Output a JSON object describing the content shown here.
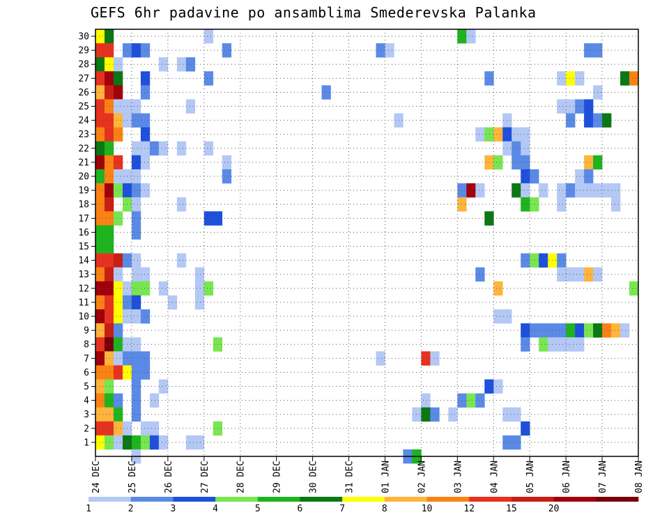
{
  "chart_data": {
    "type": "heatmap",
    "title": "GEFS 6hr padavine po ansamblima Smederevska Palanka",
    "xlabel": "",
    "ylabel": "",
    "x_tick_labels": [
      "24 DEC",
      "25 DEC",
      "26 DEC",
      "27 DEC",
      "28 DEC",
      "29 DEC",
      "30 DEC",
      "31 DEC",
      "01 JAN",
      "02 JAN",
      "03 JAN",
      "04 JAN",
      "05 JAN",
      "06 JAN",
      "07 JAN",
      "08 JAN"
    ],
    "y_tick_labels": [
      "1",
      "2",
      "3",
      "4",
      "5",
      "6",
      "7",
      "8",
      "9",
      "10",
      "11",
      "12",
      "13",
      "14",
      "15",
      "16",
      "17",
      "18",
      "19",
      "20",
      "21",
      "22",
      "23",
      "24",
      "25",
      "26",
      "27",
      "28",
      "29",
      "30"
    ],
    "time_step_hours": 6,
    "steps_per_day": 4,
    "grid": true,
    "colorbar": {
      "position": "bottom",
      "labels": [
        "1",
        "2",
        "3",
        "4",
        "5",
        "6",
        "7",
        "8",
        "10",
        "12",
        "15",
        "20"
      ],
      "colors": [
        "#b4c8f5",
        "#5a8ae6",
        "#1e50dc",
        "#78e650",
        "#1eb41e",
        "#0a7814",
        "#ffff00",
        "#ffb43c",
        "#fa8214",
        "#e6321e",
        "#c81e14",
        "#a0000a",
        "#78000a"
      ],
      "label_after_band": [
        0,
        1,
        2,
        3,
        4,
        5,
        6,
        7,
        8,
        9,
        10,
        11
      ]
    },
    "levels": [
      "#b4c8f5",
      "#5a8ae6",
      "#1e50dc",
      "#78e650",
      "#1eb41e",
      "#0a7814",
      "#ffff00",
      "#ffb43c",
      "#fa8214",
      "#e6321e",
      "#c81e14",
      "#a0000a",
      "#78000a"
    ],
    "cells": [
      [
        30,
        0,
        6
      ],
      [
        30,
        1,
        5
      ],
      [
        30,
        12,
        0
      ],
      [
        30,
        40,
        4
      ],
      [
        30,
        41,
        0
      ],
      [
        29,
        0,
        9
      ],
      [
        29,
        1,
        9
      ],
      [
        29,
        3,
        1
      ],
      [
        29,
        4,
        2
      ],
      [
        29,
        5,
        1
      ],
      [
        29,
        14,
        1
      ],
      [
        29,
        31,
        1
      ],
      [
        29,
        32,
        0
      ],
      [
        29,
        54,
        1
      ],
      [
        29,
        55,
        1
      ],
      [
        28,
        0,
        5
      ],
      [
        28,
        1,
        6
      ],
      [
        28,
        2,
        0
      ],
      [
        28,
        7,
        0
      ],
      [
        28,
        9,
        0
      ],
      [
        28,
        10,
        1
      ],
      [
        27,
        0,
        9
      ],
      [
        27,
        1,
        11
      ],
      [
        27,
        2,
        5
      ],
      [
        27,
        5,
        2
      ],
      [
        27,
        12,
        1
      ],
      [
        27,
        43,
        1
      ],
      [
        27,
        51,
        0
      ],
      [
        27,
        52,
        6
      ],
      [
        27,
        53,
        0
      ],
      [
        27,
        58,
        5
      ],
      [
        27,
        59,
        8
      ],
      [
        26,
        0,
        7
      ],
      [
        26,
        1,
        10
      ],
      [
        26,
        2,
        11
      ],
      [
        26,
        5,
        1
      ],
      [
        26,
        25,
        1
      ],
      [
        26,
        55,
        0
      ],
      [
        25,
        0,
        9
      ],
      [
        25,
        1,
        8
      ],
      [
        25,
        2,
        0
      ],
      [
        25,
        3,
        0
      ],
      [
        25,
        4,
        0
      ],
      [
        25,
        10,
        0
      ],
      [
        25,
        51,
        0
      ],
      [
        25,
        52,
        0
      ],
      [
        25,
        53,
        1
      ],
      [
        25,
        54,
        2
      ],
      [
        24,
        0,
        9
      ],
      [
        24,
        1,
        9
      ],
      [
        24,
        2,
        7
      ],
      [
        24,
        3,
        0
      ],
      [
        24,
        4,
        1
      ],
      [
        24,
        5,
        1
      ],
      [
        24,
        33,
        0
      ],
      [
        24,
        45,
        0
      ],
      [
        24,
        52,
        1
      ],
      [
        24,
        54,
        2
      ],
      [
        24,
        55,
        1
      ],
      [
        24,
        56,
        5
      ],
      [
        23,
        0,
        8
      ],
      [
        23,
        1,
        9
      ],
      [
        23,
        2,
        8
      ],
      [
        23,
        5,
        2
      ],
      [
        23,
        42,
        0
      ],
      [
        23,
        43,
        3
      ],
      [
        23,
        44,
        7
      ],
      [
        23,
        45,
        2
      ],
      [
        23,
        46,
        0
      ],
      [
        23,
        47,
        0
      ],
      [
        22,
        0,
        5
      ],
      [
        22,
        1,
        4
      ],
      [
        22,
        4,
        0
      ],
      [
        22,
        5,
        0
      ],
      [
        22,
        6,
        1
      ],
      [
        22,
        7,
        0
      ],
      [
        22,
        9,
        0
      ],
      [
        22,
        12,
        0
      ],
      [
        22,
        45,
        0
      ],
      [
        22,
        46,
        1
      ],
      [
        22,
        47,
        0
      ],
      [
        21,
        0,
        11
      ],
      [
        21,
        1,
        8
      ],
      [
        21,
        2,
        9
      ],
      [
        21,
        4,
        2
      ],
      [
        21,
        5,
        0
      ],
      [
        21,
        14,
        0
      ],
      [
        21,
        43,
        7
      ],
      [
        21,
        44,
        3
      ],
      [
        21,
        46,
        1
      ],
      [
        21,
        47,
        1
      ],
      [
        21,
        54,
        7
      ],
      [
        21,
        55,
        4
      ],
      [
        20,
        0,
        4
      ],
      [
        20,
        1,
        8
      ],
      [
        20,
        2,
        0
      ],
      [
        20,
        3,
        0
      ],
      [
        20,
        4,
        0
      ],
      [
        20,
        14,
        1
      ],
      [
        20,
        47,
        2
      ],
      [
        20,
        48,
        1
      ],
      [
        20,
        53,
        0
      ],
      [
        20,
        54,
        1
      ],
      [
        19,
        0,
        8
      ],
      [
        19,
        1,
        11
      ],
      [
        19,
        2,
        3
      ],
      [
        19,
        3,
        2
      ],
      [
        19,
        4,
        1
      ],
      [
        19,
        5,
        0
      ],
      [
        19,
        40,
        1
      ],
      [
        19,
        41,
        11
      ],
      [
        19,
        42,
        0
      ],
      [
        19,
        46,
        5
      ],
      [
        19,
        47,
        0
      ],
      [
        19,
        49,
        0
      ],
      [
        19,
        51,
        0
      ],
      [
        19,
        52,
        1
      ],
      [
        19,
        53,
        0
      ],
      [
        19,
        54,
        0
      ],
      [
        19,
        55,
        0
      ],
      [
        19,
        56,
        0
      ],
      [
        19,
        57,
        0
      ],
      [
        18,
        0,
        8
      ],
      [
        18,
        1,
        10
      ],
      [
        18,
        3,
        3
      ],
      [
        18,
        4,
        0
      ],
      [
        18,
        9,
        0
      ],
      [
        18,
        40,
        7
      ],
      [
        18,
        47,
        4
      ],
      [
        18,
        48,
        3
      ],
      [
        18,
        51,
        0
      ],
      [
        18,
        57,
        0
      ],
      [
        17,
        0,
        8
      ],
      [
        17,
        1,
        8
      ],
      [
        17,
        2,
        3
      ],
      [
        17,
        4,
        1
      ],
      [
        17,
        12,
        2
      ],
      [
        17,
        13,
        2
      ],
      [
        17,
        43,
        5
      ],
      [
        16,
        0,
        4
      ],
      [
        16,
        1,
        4
      ],
      [
        16,
        4,
        1
      ],
      [
        15,
        0,
        4
      ],
      [
        15,
        1,
        4
      ],
      [
        14,
        0,
        9
      ],
      [
        14,
        1,
        9
      ],
      [
        14,
        2,
        10
      ],
      [
        14,
        3,
        1
      ],
      [
        14,
        4,
        0
      ],
      [
        14,
        9,
        0
      ],
      [
        14,
        47,
        1
      ],
      [
        14,
        48,
        3
      ],
      [
        14,
        49,
        2
      ],
      [
        14,
        50,
        6
      ],
      [
        14,
        51,
        1
      ],
      [
        13,
        0,
        8
      ],
      [
        13,
        1,
        10
      ],
      [
        13,
        2,
        0
      ],
      [
        13,
        4,
        0
      ],
      [
        13,
        5,
        0
      ],
      [
        13,
        11,
        0
      ],
      [
        13,
        42,
        1
      ],
      [
        13,
        51,
        0
      ],
      [
        13,
        52,
        0
      ],
      [
        13,
        53,
        0
      ],
      [
        13,
        54,
        7
      ],
      [
        13,
        55,
        0
      ],
      [
        12,
        0,
        11
      ],
      [
        12,
        1,
        11
      ],
      [
        12,
        2,
        6
      ],
      [
        12,
        3,
        0
      ],
      [
        12,
        4,
        3
      ],
      [
        12,
        5,
        3
      ],
      [
        12,
        7,
        0
      ],
      [
        12,
        11,
        0
      ],
      [
        12,
        12,
        3
      ],
      [
        12,
        44,
        7
      ],
      [
        12,
        59,
        3
      ],
      [
        11,
        0,
        8
      ],
      [
        11,
        1,
        9
      ],
      [
        11,
        2,
        6
      ],
      [
        11,
        3,
        1
      ],
      [
        11,
        4,
        2
      ],
      [
        11,
        8,
        0
      ],
      [
        11,
        11,
        0
      ],
      [
        10,
        0,
        11
      ],
      [
        10,
        1,
        9
      ],
      [
        10,
        2,
        6
      ],
      [
        10,
        3,
        0
      ],
      [
        10,
        4,
        0
      ],
      [
        10,
        5,
        1
      ],
      [
        10,
        44,
        0
      ],
      [
        10,
        45,
        0
      ],
      [
        9,
        0,
        7
      ],
      [
        9,
        1,
        10
      ],
      [
        9,
        2,
        1
      ],
      [
        9,
        47,
        2
      ],
      [
        9,
        48,
        1
      ],
      [
        9,
        49,
        1
      ],
      [
        9,
        50,
        1
      ],
      [
        9,
        51,
        1
      ],
      [
        9,
        52,
        4
      ],
      [
        9,
        53,
        2
      ],
      [
        9,
        54,
        3
      ],
      [
        9,
        55,
        5
      ],
      [
        9,
        56,
        8
      ],
      [
        9,
        57,
        7
      ],
      [
        9,
        58,
        0
      ],
      [
        8,
        0,
        9
      ],
      [
        8,
        1,
        12
      ],
      [
        8,
        2,
        4
      ],
      [
        8,
        3,
        0
      ],
      [
        8,
        4,
        0
      ],
      [
        8,
        13,
        3
      ],
      [
        8,
        47,
        1
      ],
      [
        8,
        49,
        3
      ],
      [
        8,
        50,
        0
      ],
      [
        8,
        51,
        0
      ],
      [
        8,
        52,
        0
      ],
      [
        8,
        53,
        0
      ],
      [
        7,
        0,
        11
      ],
      [
        7,
        1,
        7
      ],
      [
        7,
        2,
        0
      ],
      [
        7,
        3,
        1
      ],
      [
        7,
        4,
        1
      ],
      [
        7,
        5,
        1
      ],
      [
        7,
        31,
        0
      ],
      [
        7,
        36,
        9
      ],
      [
        7,
        37,
        0
      ],
      [
        6,
        0,
        8
      ],
      [
        6,
        1,
        8
      ],
      [
        6,
        2,
        9
      ],
      [
        6,
        3,
        6
      ],
      [
        6,
        4,
        1
      ],
      [
        6,
        5,
        1
      ],
      [
        5,
        0,
        7
      ],
      [
        5,
        1,
        3
      ],
      [
        5,
        4,
        1
      ],
      [
        5,
        7,
        0
      ],
      [
        5,
        43,
        2
      ],
      [
        5,
        44,
        0
      ],
      [
        4,
        0,
        8
      ],
      [
        4,
        1,
        4
      ],
      [
        4,
        2,
        1
      ],
      [
        4,
        4,
        1
      ],
      [
        4,
        6,
        0
      ],
      [
        4,
        36,
        0
      ],
      [
        4,
        40,
        1
      ],
      [
        4,
        41,
        3
      ],
      [
        4,
        42,
        1
      ],
      [
        3,
        0,
        7
      ],
      [
        3,
        1,
        7
      ],
      [
        3,
        2,
        4
      ],
      [
        3,
        4,
        1
      ],
      [
        3,
        35,
        0
      ],
      [
        3,
        36,
        5
      ],
      [
        3,
        37,
        1
      ],
      [
        3,
        39,
        0
      ],
      [
        3,
        45,
        0
      ],
      [
        3,
        46,
        0
      ],
      [
        2,
        0,
        9
      ],
      [
        2,
        1,
        9
      ],
      [
        2,
        2,
        7
      ],
      [
        2,
        3,
        0
      ],
      [
        2,
        5,
        0
      ],
      [
        2,
        6,
        0
      ],
      [
        2,
        13,
        3
      ],
      [
        2,
        47,
        2
      ],
      [
        1,
        0,
        6
      ],
      [
        1,
        1,
        3
      ],
      [
        1,
        2,
        0
      ],
      [
        1,
        3,
        5
      ],
      [
        1,
        4,
        4
      ],
      [
        1,
        5,
        3
      ],
      [
        1,
        6,
        2
      ],
      [
        1,
        7,
        0
      ],
      [
        1,
        10,
        0
      ],
      [
        1,
        11,
        0
      ],
      [
        1,
        45,
        1
      ],
      [
        1,
        46,
        1
      ],
      [
        0,
        4,
        0
      ],
      [
        0,
        34,
        1
      ],
      [
        0,
        35,
        4
      ]
    ]
  }
}
